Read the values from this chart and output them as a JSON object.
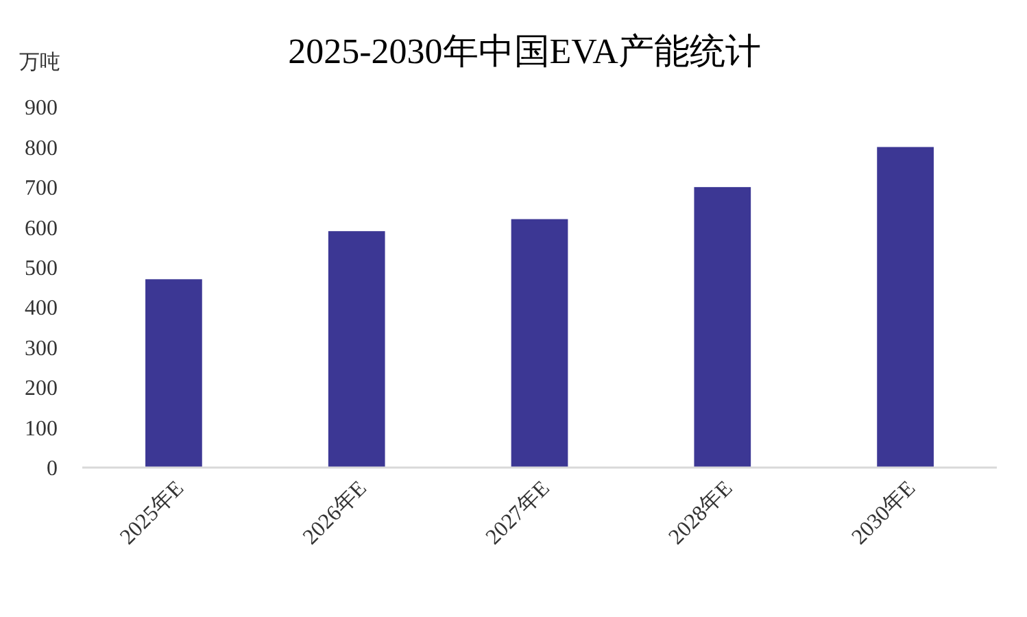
{
  "chart_data": {
    "type": "bar",
    "title": "2025-2030年中国EVA产能统计",
    "ylabel": "万吨",
    "categories": [
      "2025年E",
      "2026年E",
      "2027年E",
      "2028年E",
      "2030年E"
    ],
    "values": [
      470,
      590,
      620,
      700,
      800
    ],
    "color": "#3c3794",
    "ylim": [
      0,
      900
    ],
    "yticks": [
      0,
      100,
      200,
      300,
      400,
      500,
      600,
      700,
      800,
      900
    ],
    "grid": false
  }
}
